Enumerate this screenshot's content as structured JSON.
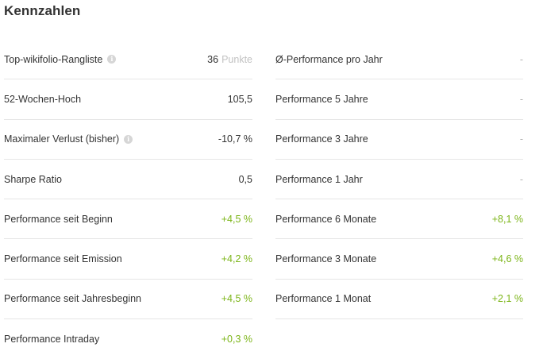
{
  "title": "Kennzahlen",
  "colors": {
    "positive": "#7cb518",
    "muted": "#b0b0b0",
    "info_icon": "#d6d6d6"
  },
  "left": {
    "rank": {
      "label": "Top-wikifolio-Rangliste",
      "value": "36",
      "unit": "Punkte",
      "info_icon": "info-icon"
    },
    "high52": {
      "label": "52-Wochen-Hoch",
      "value": "105,5"
    },
    "maxloss": {
      "label": "Maximaler Verlust (bisher)",
      "value": "-10,7 %",
      "info_icon": "info-icon"
    },
    "sharpe": {
      "label": "Sharpe Ratio",
      "value": "0,5"
    },
    "perf_start": {
      "label": "Performance seit Beginn",
      "value": "+4,5 %"
    },
    "perf_emission": {
      "label": "Performance seit Emission",
      "value": "+4,2 %"
    },
    "perf_ytd": {
      "label": "Performance seit Jahresbeginn",
      "value": "+4,5 %"
    },
    "perf_intraday": {
      "label": "Performance Intraday",
      "value": "+0,3 %"
    }
  },
  "right": {
    "perf_avg_year": {
      "label": "Ø-Performance pro Jahr",
      "value": "-"
    },
    "perf_5y": {
      "label": "Performance 5 Jahre",
      "value": "-"
    },
    "perf_3y": {
      "label": "Performance 3 Jahre",
      "value": "-"
    },
    "perf_1y": {
      "label": "Performance 1 Jahr",
      "value": "-"
    },
    "perf_6m": {
      "label": "Performance 6 Monate",
      "value": "+8,1 %"
    },
    "perf_3m": {
      "label": "Performance 3 Monate",
      "value": "+4,6 %"
    },
    "perf_1m": {
      "label": "Performance 1 Monat",
      "value": "+2,1 %"
    }
  }
}
